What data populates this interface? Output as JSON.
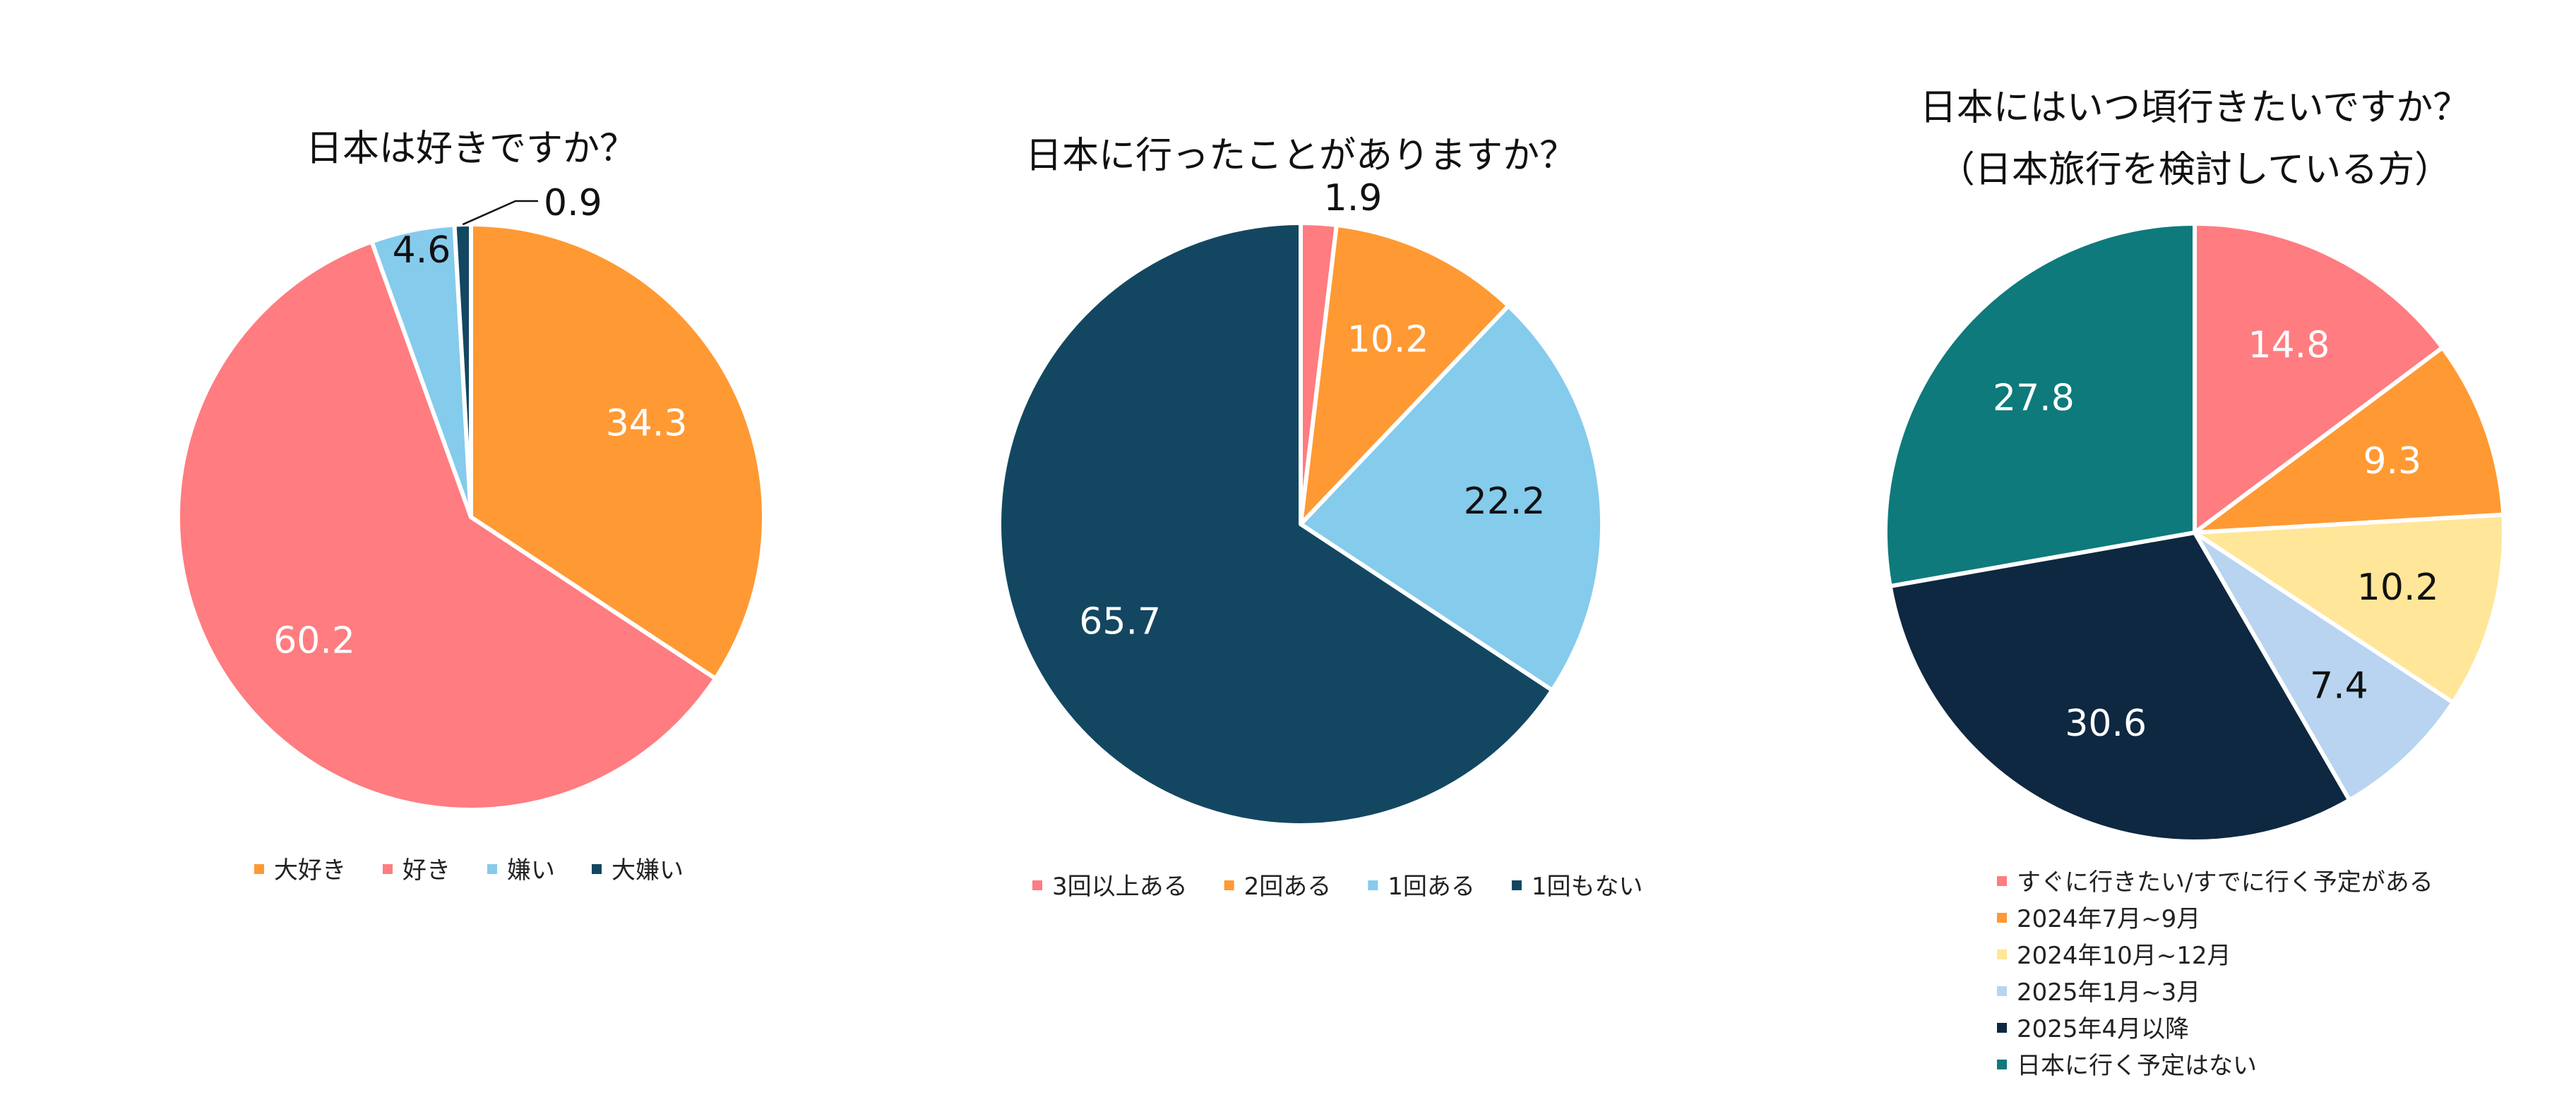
{
  "chart_data": [
    {
      "type": "pie",
      "title": "日本は好きですか？",
      "slices": [
        {
          "label": "大好き",
          "value": 34.3,
          "color": "#FF9933",
          "label_color": "#ffffff"
        },
        {
          "label": "好き",
          "value": 60.2,
          "color": "#FF7C80",
          "label_color": "#ffffff"
        },
        {
          "label": "嫌い",
          "value": 4.6,
          "color": "#85CBEC",
          "label_color": "#111111"
        },
        {
          "label": "大嫌い",
          "value": 0.9,
          "color": "#134761",
          "label_color": "#111111"
        }
      ],
      "legend": "bottom"
    },
    {
      "type": "pie",
      "title": "日本に行ったことがありますか？",
      "slices": [
        {
          "label": "3回以上ある",
          "value": 1.9,
          "color": "#FF7C80",
          "label_color": "#111111"
        },
        {
          "label": "2回ある",
          "value": 10.2,
          "color": "#FF9933",
          "label_color": "#ffffff"
        },
        {
          "label": "1回ある",
          "value": 22.2,
          "color": "#85CBEC",
          "label_color": "#111111"
        },
        {
          "label": "1回もない",
          "value": 65.7,
          "color": "#134761",
          "label_color": "#ffffff"
        }
      ],
      "legend": "bottom"
    },
    {
      "type": "pie",
      "title": "日本にはいつ頃行きたいですか？",
      "subtitle": "（日本旅行を検討している方）",
      "slices": [
        {
          "label": "すぐに行きたい/すでに行く予定がある",
          "value": 14.8,
          "color": "#FF7C80",
          "label_color": "#ffffff"
        },
        {
          "label": "2024年7月~9月",
          "value": 9.3,
          "color": "#FF9933",
          "label_color": "#ffffff"
        },
        {
          "label": "2024年10月~12月",
          "value": 10.2,
          "color": "#FFE699",
          "label_color": "#111111"
        },
        {
          "label": "2025年1月~3月",
          "value": 7.4,
          "color": "#B8D4F0",
          "label_color": "#111111"
        },
        {
          "label": "2025年4月以降",
          "value": 30.6,
          "color": "#0E2841",
          "label_color": "#ffffff"
        },
        {
          "label": "日本に行く予定はない",
          "value": 27.8,
          "color": "#0E7A7C",
          "label_color": "#ffffff"
        }
      ],
      "legend": "bottom"
    }
  ]
}
